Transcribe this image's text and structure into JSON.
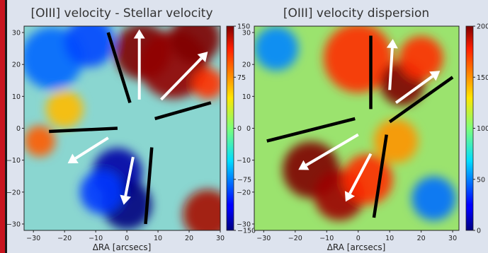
{
  "chart_data": [
    {
      "type": "heatmap",
      "title": "[OIII] velocity - Stellar velocity",
      "xlabel": "ΔRA [arcsecs]",
      "ylabel": "",
      "xticks": [
        -30,
        -20,
        -10,
        0,
        10,
        20,
        30
      ],
      "yticks": [
        30,
        20,
        10,
        0,
        -10,
        -20,
        -30
      ],
      "xlim": [
        -33,
        30
      ],
      "ylim": [
        -32,
        32
      ],
      "colorbar": {
        "ticks": [
          150,
          75,
          0,
          -75,
          -150
        ],
        "range": [
          -150,
          150
        ],
        "colormap": "jet"
      },
      "regions": [
        {
          "x": 5,
          "y": 24,
          "r": 9,
          "value": 150
        },
        {
          "x": 15,
          "y": 20,
          "r": 11,
          "value": 145
        },
        {
          "x": 22,
          "y": 28,
          "r": 8,
          "value": 150
        },
        {
          "x": 26,
          "y": 14,
          "r": 5,
          "value": 110
        },
        {
          "x": -3,
          "y": -14,
          "r": 8,
          "value": -140
        },
        {
          "x": 0,
          "y": -24,
          "r": 8,
          "value": -150
        },
        {
          "x": -8,
          "y": -20,
          "r": 7,
          "value": -100
        },
        {
          "x": -24,
          "y": 22,
          "r": 10,
          "value": -85
        },
        {
          "x": -12,
          "y": 27,
          "r": 8,
          "value": -95
        },
        {
          "x": 26,
          "y": -27,
          "r": 8,
          "value": 140
        },
        {
          "x": -28,
          "y": -4,
          "r": 5,
          "value": 95
        },
        {
          "x": -20,
          "y": 6,
          "r": 6,
          "value": 60
        }
      ],
      "lines": [
        {
          "x": [
            -6,
            1
          ],
          "y": [
            30,
            8
          ]
        },
        {
          "x": [
            9,
            27
          ],
          "y": [
            3,
            8
          ]
        },
        {
          "x": [
            -25,
            -3
          ],
          "y": [
            -1,
            0
          ]
        },
        {
          "x": [
            8,
            6
          ],
          "y": [
            -6,
            -30
          ]
        }
      ],
      "arrows": [
        {
          "x": [
            4,
            4
          ],
          "y": [
            9,
            31
          ]
        },
        {
          "x": [
            11,
            26
          ],
          "y": [
            9,
            24
          ]
        },
        {
          "x": [
            -6,
            -19
          ],
          "y": [
            -3,
            -11
          ]
        },
        {
          "x": [
            2,
            -1
          ],
          "y": [
            -9,
            -24
          ]
        }
      ]
    },
    {
      "type": "heatmap",
      "title": "[OIII] velocity dispersion",
      "xlabel": "ΔRA [arcsecs]",
      "ylabel": "",
      "xticks": [
        -30,
        -20,
        -10,
        0,
        10,
        20,
        30
      ],
      "yticks": [
        30,
        20,
        10,
        0,
        -10,
        -20,
        -30
      ],
      "xlim": [
        -33,
        32
      ],
      "ylim": [
        -32,
        32
      ],
      "colorbar": {
        "ticks": [
          200,
          150,
          100,
          50,
          0
        ],
        "range": [
          0,
          200
        ],
        "colormap": "jet"
      },
      "regions": [
        {
          "x": 0,
          "y": 22,
          "r": 11,
          "value": 175
        },
        {
          "x": 14,
          "y": 14,
          "r": 7,
          "value": 200
        },
        {
          "x": 20,
          "y": 22,
          "r": 7,
          "value": 175
        },
        {
          "x": -15,
          "y": -13,
          "r": 9,
          "value": 200
        },
        {
          "x": -6,
          "y": -21,
          "r": 8,
          "value": 195
        },
        {
          "x": 3,
          "y": -16,
          "r": 8,
          "value": 175
        },
        {
          "x": -26,
          "y": 25,
          "r": 7,
          "value": 50
        },
        {
          "x": 24,
          "y": -22,
          "r": 7,
          "value": 45
        },
        {
          "x": 12,
          "y": -4,
          "r": 7,
          "value": 150
        }
      ],
      "lines": [
        {
          "x": [
            4,
            4
          ],
          "y": [
            29,
            6
          ]
        },
        {
          "x": [
            10,
            30
          ],
          "y": [
            2,
            16
          ]
        },
        {
          "x": [
            -29,
            -1
          ],
          "y": [
            -4,
            3
          ]
        },
        {
          "x": [
            9,
            5
          ],
          "y": [
            -2,
            -28
          ]
        }
      ],
      "arrows": [
        {
          "x": [
            10,
            11
          ],
          "y": [
            12,
            28
          ]
        },
        {
          "x": [
            12,
            26
          ],
          "y": [
            8,
            18
          ]
        },
        {
          "x": [
            0,
            -19
          ],
          "y": [
            -2,
            -13
          ]
        },
        {
          "x": [
            4,
            -4
          ],
          "y": [
            -8,
            -23
          ]
        }
      ]
    }
  ]
}
